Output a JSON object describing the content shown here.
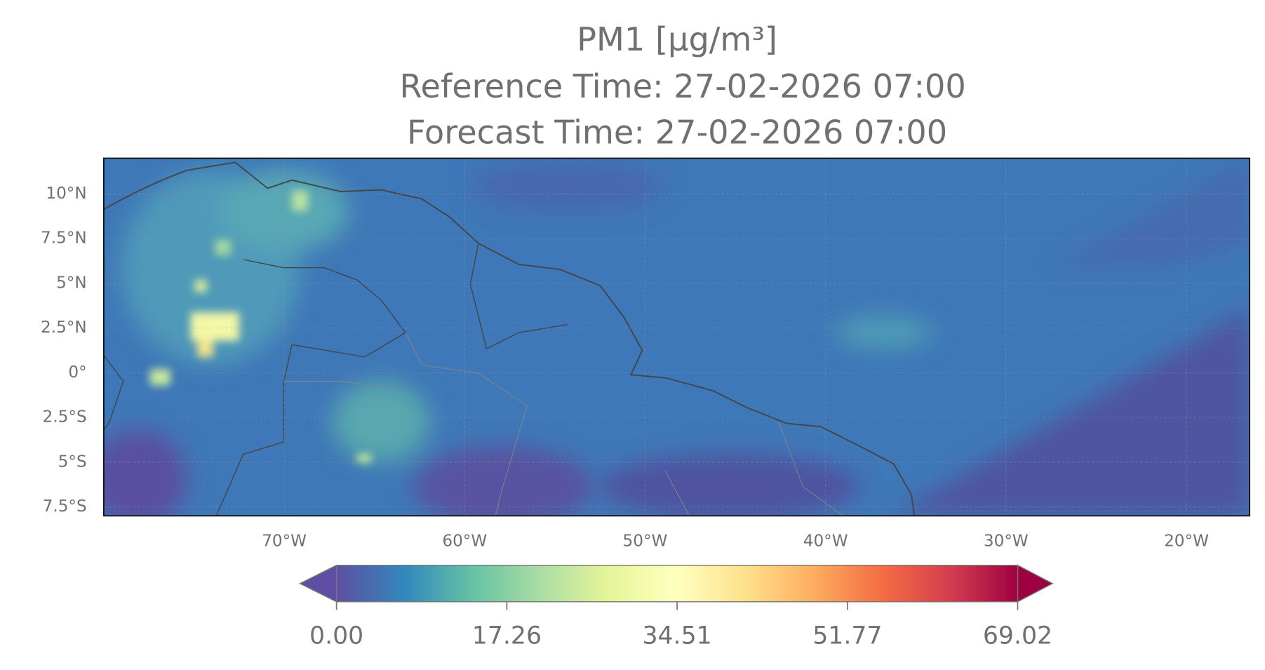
{
  "chart_data": {
    "type": "map",
    "title": "PM1 [µg/m³]",
    "reference_time": "Reference Time: 27-02-2026 07:00",
    "forecast_time": "Forecast Time: 27-02-2026 07:00",
    "xlim": [
      -80,
      -16.5
    ],
    "ylim": [
      -8,
      12
    ],
    "xticks": [
      {
        "value": -70,
        "label": "70°W"
      },
      {
        "value": -60,
        "label": "60°W"
      },
      {
        "value": -50,
        "label": "50°W"
      },
      {
        "value": -40,
        "label": "40°W"
      },
      {
        "value": -30,
        "label": "30°W"
      },
      {
        "value": -20,
        "label": "20°W"
      }
    ],
    "yticks": [
      {
        "value": 10,
        "label": "10°N"
      },
      {
        "value": 7.5,
        "label": "7.5°N"
      },
      {
        "value": 5,
        "label": "5°N"
      },
      {
        "value": 2.5,
        "label": "2.5°N"
      },
      {
        "value": 0,
        "label": "0°"
      },
      {
        "value": -2.5,
        "label": "2.5°S"
      },
      {
        "value": -5,
        "label": "5°S"
      },
      {
        "value": -7.5,
        "label": "7.5°S"
      }
    ],
    "grid": true,
    "colorbar": {
      "lim": [
        0,
        69.02
      ],
      "extend": "both",
      "ticks": [
        {
          "value": 0,
          "label": "0.00"
        },
        17.26,
        34.51,
        51.77,
        69.02
      ],
      "colors": [
        "#5e4fa2",
        "#3288bd",
        "#66c2a5",
        "#abdda4",
        "#e6f598",
        "#ffffbf",
        "#fee08b",
        "#fdae61",
        "#f46d43",
        "#d53e4f",
        "#9e0142"
      ]
    }
  }
}
